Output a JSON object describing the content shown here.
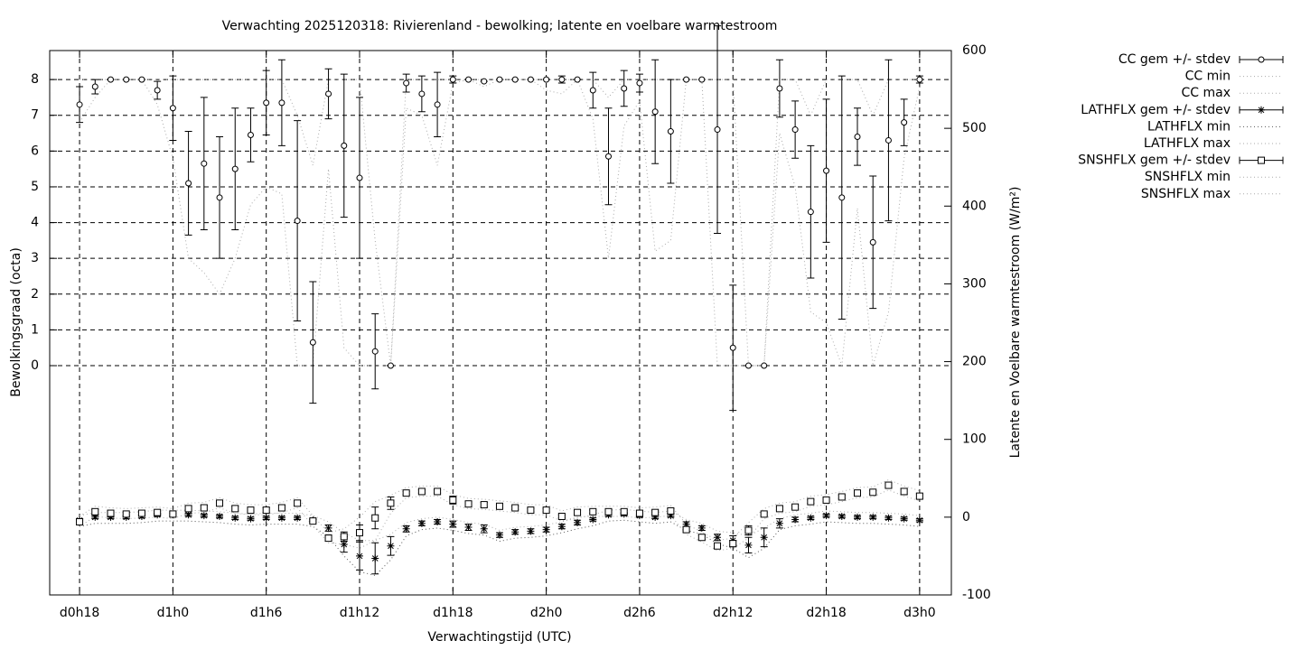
{
  "chart_data": {
    "type": "errorbar",
    "title": "Verwachting 2025120318: Rivierenland - bewolking; latente en voelbare warmtestroom",
    "xlabel": "Verwachtingstijd (UTC)",
    "ylabel": "Bewolkingsgraad (octa)",
    "y2label": "Latente en Voelbare warmtestroom (W/m²)",
    "grid": true,
    "x": [
      18,
      19,
      20,
      21,
      22,
      23,
      24,
      25,
      26,
      27,
      28,
      29,
      30,
      31,
      32,
      33,
      34,
      35,
      36,
      37,
      38,
      39,
      40,
      41,
      42,
      43,
      44,
      45,
      46,
      47,
      48,
      49,
      50,
      51,
      52,
      53,
      54,
      55,
      56,
      57,
      58,
      59,
      60,
      61,
      62,
      63,
      64,
      65,
      66,
      67,
      68,
      69,
      70,
      71,
      72
    ],
    "xlim": [
      16.08,
      74.04
    ],
    "xticks": [
      {
        "value": 18,
        "label": "d0h18"
      },
      {
        "value": 24,
        "label": "d1h0"
      },
      {
        "value": 30,
        "label": "d1h6"
      },
      {
        "value": 36,
        "label": "d1h12"
      },
      {
        "value": 42,
        "label": "d1h18"
      },
      {
        "value": 48,
        "label": "d2h0"
      },
      {
        "value": 54,
        "label": "d2h6"
      },
      {
        "value": 60,
        "label": "d2h12"
      },
      {
        "value": 66,
        "label": "d2h18"
      },
      {
        "value": 72,
        "label": "d3h0"
      }
    ],
    "ylim": [
      -6.41,
      8.81
    ],
    "yticks": [
      0,
      1,
      2,
      3,
      4,
      5,
      6,
      7,
      8
    ],
    "y2lim": [
      -100,
      600
    ],
    "y2ticks": [
      -100,
      0,
      100,
      200,
      300,
      400,
      500,
      600
    ],
    "series": [
      {
        "name": "CC gem +/- stdev",
        "style": "errorbar",
        "marker": "circle",
        "color": "#000000",
        "axis": "y",
        "values": [
          7.3,
          7.8,
          8,
          8,
          8,
          7.7,
          7.2,
          5.1,
          5.65,
          4.7,
          5.5,
          6.45,
          7.35,
          7.35,
          4.05,
          0.65,
          7.6,
          6.15,
          5.25,
          0.4,
          0,
          7.9,
          7.6,
          7.3,
          8,
          8,
          7.95,
          8,
          8,
          8,
          8,
          8,
          8,
          7.7,
          5.85,
          7.75,
          7.9,
          7.1,
          6.55,
          8,
          8,
          6.6,
          0.5,
          0,
          0,
          7.75,
          6.6,
          4.3,
          5.45,
          4.7,
          6.4,
          3.45,
          6.3,
          6.8,
          8
        ],
        "errors": [
          0.5,
          0.2,
          0,
          0,
          0,
          0.25,
          0.9,
          1.45,
          1.85,
          1.7,
          1.7,
          0.75,
          0.9,
          1.2,
          2.8,
          1.7,
          0.7,
          2.0,
          2.25,
          1.05,
          0,
          0.25,
          0.5,
          0.9,
          0.1,
          0,
          0,
          0,
          0,
          0,
          0,
          0.1,
          0,
          0.5,
          1.35,
          0.5,
          0.25,
          1.45,
          1.45,
          0,
          0,
          2.9,
          1.75,
          0,
          0,
          0.8,
          0.8,
          1.85,
          2.0,
          3.4,
          0.8,
          1.85,
          2.25,
          0.65,
          0.1
        ]
      },
      {
        "name": "CC min",
        "style": "dotted",
        "color": "#aaaaaa",
        "axis": "y",
        "values": [
          6.8,
          7.5,
          8,
          8,
          8,
          7.3,
          5.8,
          3,
          2.6,
          2,
          3,
          4.5,
          5,
          4.8,
          0,
          0,
          5.5,
          0.5,
          0,
          0,
          0,
          7.2,
          7,
          5.6,
          7.9,
          8,
          7.8,
          8,
          8,
          8,
          7.7,
          7.6,
          8,
          6.9,
          3,
          6.7,
          7.4,
          3.2,
          3.5,
          8,
          8,
          0,
          0,
          0,
          0,
          6.5,
          5,
          1.5,
          1.2,
          0,
          4.4,
          0,
          1.5,
          5.8,
          7.8
        ]
      },
      {
        "name": "CC max",
        "style": "dotted",
        "color": "#aaaaaa",
        "axis": "y",
        "values": [
          8,
          8,
          8,
          8,
          8,
          8,
          8,
          8,
          8,
          8,
          8,
          8,
          8,
          8,
          7,
          5.6,
          8,
          8,
          8,
          3.5,
          0,
          8,
          8,
          8,
          8,
          8,
          8,
          8,
          8,
          8,
          8,
          8,
          8,
          8,
          7.5,
          8,
          8,
          8,
          8,
          8,
          8,
          8,
          8,
          0,
          0,
          8,
          8,
          7,
          8,
          8,
          8,
          7,
          8,
          8,
          8
        ]
      },
      {
        "name": "LATHFLX gem +/- stdev",
        "style": "errorbar",
        "marker": "star",
        "color": "#000000",
        "axis": "y2",
        "values": [
          -4,
          0,
          0,
          0,
          1,
          3,
          3,
          3,
          2,
          1,
          -1,
          -2,
          -1,
          -1,
          -1,
          -4,
          -14,
          -35,
          -50,
          -53,
          -37,
          -15,
          -8,
          -6,
          -9,
          -13,
          -15,
          -23,
          -19,
          -18,
          -16,
          -12,
          -7,
          -3,
          3,
          4,
          2,
          0,
          2,
          -9,
          -14,
          -26,
          -30,
          -36,
          -26,
          -8,
          -3,
          -1,
          2,
          1,
          0,
          0,
          -1,
          -2,
          -4
        ],
        "errors": [
          2,
          2,
          2,
          2,
          2,
          2,
          2,
          2,
          2,
          2,
          2,
          2,
          2,
          2,
          2,
          2,
          4,
          10,
          18,
          20,
          12,
          4,
          3,
          3,
          4,
          4,
          5,
          3,
          3,
          3,
          3,
          3,
          3,
          2,
          2,
          2,
          2,
          2,
          2,
          3,
          3,
          4,
          6,
          10,
          12,
          6,
          3,
          2,
          2,
          2,
          2,
          2,
          2,
          2,
          2
        ]
      },
      {
        "name": "LATHFLX min",
        "style": "dotted",
        "color": "#555555",
        "axis": "y2",
        "values": [
          -12,
          -8,
          -8,
          -8,
          -7,
          -5,
          -5,
          -5,
          -6,
          -7,
          -9,
          -10,
          -9,
          -9,
          -9,
          -12,
          -25,
          -50,
          -70,
          -75,
          -55,
          -24,
          -16,
          -14,
          -17,
          -21,
          -23,
          -31,
          -27,
          -26,
          -24,
          -20,
          -15,
          -11,
          -5,
          -4,
          -6,
          -8,
          -6,
          -17,
          -22,
          -34,
          -40,
          -52,
          -40,
          -16,
          -11,
          -9,
          -6,
          -7,
          -8,
          -8,
          -9,
          -10,
          -12
        ]
      },
      {
        "name": "LATHFLX max",
        "style": "dotted",
        "color": "#aaaaaa",
        "axis": "y2",
        "values": [
          2,
          6,
          6,
          6,
          7,
          9,
          9,
          9,
          8,
          7,
          5,
          4,
          5,
          5,
          5,
          2,
          -6,
          -20,
          -30,
          -30,
          -22,
          -7,
          -2,
          0,
          -3,
          -7,
          -9,
          -17,
          -13,
          -12,
          -10,
          -6,
          -1,
          3,
          9,
          10,
          8,
          6,
          8,
          -3,
          -8,
          -18,
          -20,
          -24,
          -14,
          -2,
          3,
          5,
          8,
          7,
          6,
          6,
          5,
          4,
          2
        ]
      },
      {
        "name": "SNSHFLX gem +/- stdev",
        "style": "errorbar",
        "marker": "square",
        "color": "#000000",
        "axis": "y2",
        "values": [
          -6,
          7,
          5,
          4,
          5,
          6,
          4,
          11,
          12,
          18,
          11,
          9,
          9,
          12,
          18,
          -5,
          -27,
          -25,
          -20,
          -1,
          18,
          31,
          33,
          33,
          22,
          17,
          16,
          14,
          12,
          9,
          9,
          1,
          6,
          7,
          7,
          7,
          5,
          6,
          8,
          -16,
          -26,
          -37,
          -34,
          -17,
          4,
          11,
          13,
          20,
          22,
          26,
          31,
          32,
          41,
          33,
          27
        ],
        "errors": [
          4,
          3,
          2,
          2,
          2,
          2,
          3,
          3,
          3,
          3,
          3,
          2,
          3,
          4,
          3,
          2,
          4,
          6,
          10,
          14,
          8,
          2,
          2,
          2,
          5,
          3,
          3,
          2,
          2,
          2,
          2,
          2,
          3,
          2,
          2,
          2,
          3,
          3,
          3,
          3,
          3,
          3,
          4,
          6,
          2,
          2,
          2,
          2,
          2,
          2,
          2,
          2,
          3,
          4,
          3
        ]
      },
      {
        "name": "SNSHFLX min",
        "style": "dotted",
        "color": "#aaaaaa",
        "axis": "y2",
        "values": [
          -12,
          1,
          -1,
          -2,
          -1,
          0,
          -2,
          5,
          6,
          12,
          5,
          3,
          3,
          6,
          12,
          -11,
          -33,
          -35,
          -40,
          -30,
          5,
          25,
          27,
          27,
          16,
          11,
          10,
          8,
          6,
          3,
          3,
          -5,
          0,
          1,
          1,
          1,
          -1,
          0,
          2,
          -22,
          -32,
          -43,
          -40,
          -27,
          -2,
          5,
          7,
          14,
          16,
          20,
          25,
          26,
          35,
          27,
          21
        ]
      },
      {
        "name": "SNSHFLX max",
        "style": "dotted",
        "color": "#aaaaaa",
        "axis": "y2",
        "values": [
          1,
          14,
          12,
          11,
          12,
          13,
          11,
          18,
          19,
          25,
          18,
          16,
          16,
          19,
          25,
          2,
          -20,
          -15,
          0,
          20,
          28,
          38,
          40,
          40,
          29,
          24,
          23,
          21,
          19,
          16,
          16,
          8,
          13,
          14,
          14,
          14,
          12,
          13,
          15,
          -9,
          -19,
          -30,
          -27,
          -7,
          11,
          18,
          20,
          27,
          29,
          33,
          38,
          39,
          48,
          40,
          34
        ]
      }
    ]
  }
}
